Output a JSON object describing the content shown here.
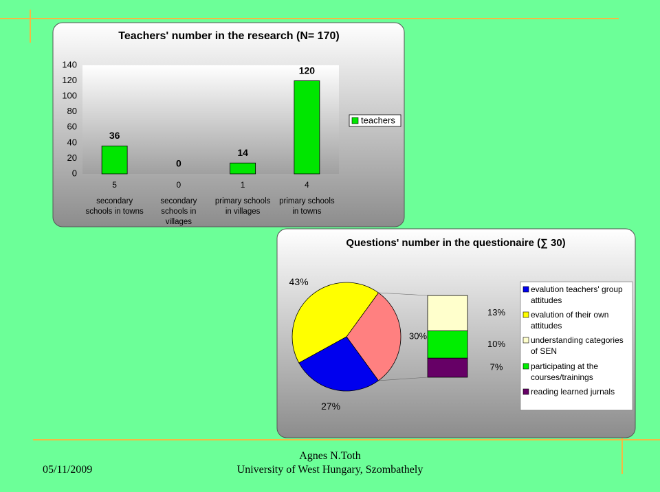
{
  "chart_data": [
    {
      "type": "bar",
      "title": "Teachers' number in the research (N= 170)",
      "categories": [
        "secondary schools in towns",
        "secondary schools in villages",
        "primary schools in villages",
        "primary schools in towns"
      ],
      "counts": [
        5,
        0,
        1,
        4
      ],
      "series": [
        {
          "name": "teachers",
          "color": "#00e600",
          "values": [
            36,
            0,
            14,
            120
          ]
        }
      ],
      "ylim": [
        0,
        140
      ],
      "yticks": [
        0,
        20,
        40,
        60,
        80,
        100,
        120,
        140
      ],
      "legend": "right"
    },
    {
      "type": "pie-of-bar",
      "title": "Questions' number in the questionaire (∑ 30)",
      "categories": [
        "evalution teachers' group attitudes",
        "evalution of their own attitudes",
        "understanding categories of SEN",
        "participating at the courses/trainings",
        "reading learned jurnals"
      ],
      "values": [
        27,
        43,
        13,
        10,
        7
      ],
      "value_labels": [
        "27%",
        "43%",
        "13%",
        "10%",
        "7%"
      ],
      "colors": [
        "#0000ee",
        "#ffff00",
        "#ffffcc",
        "#00ee00",
        "#660066"
      ],
      "secondary_count": 3,
      "other": {
        "value": 30,
        "label": "30%",
        "color": "#ff8080"
      },
      "legend": "right"
    }
  ],
  "footer": {
    "date": "05/11/2009",
    "author": "Agnes N.Toth",
    "affiliation": "University of West Hungary, Szombathely"
  }
}
